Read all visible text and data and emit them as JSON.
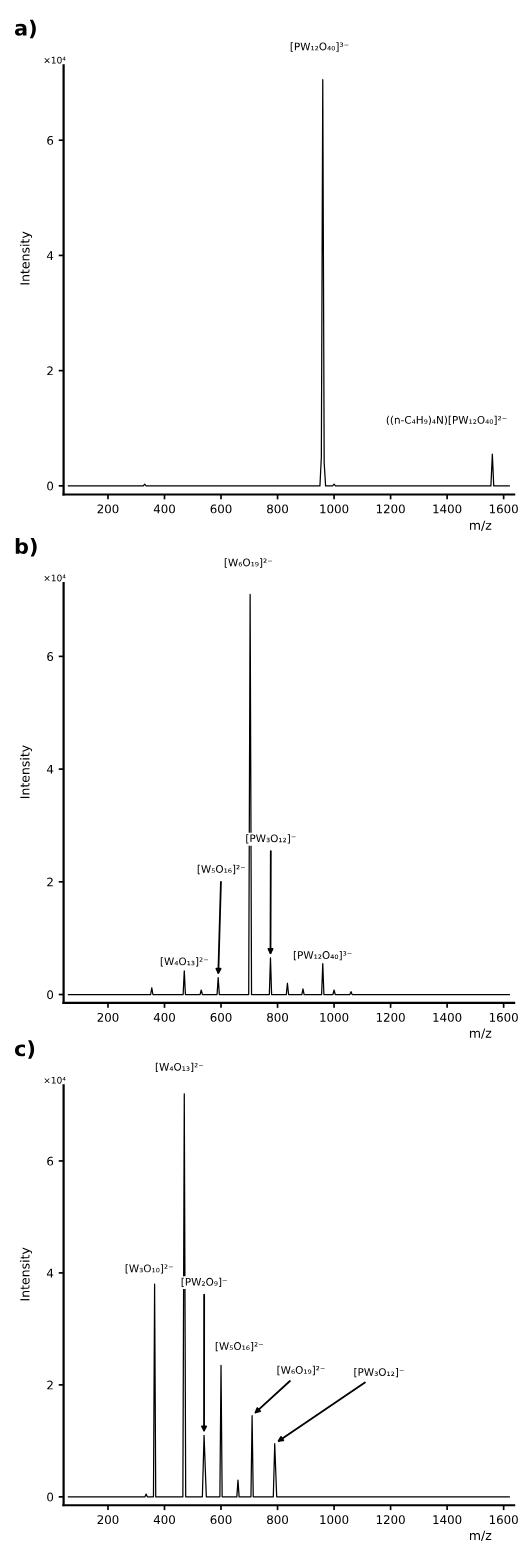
{
  "chart_data": [
    {
      "type": "line",
      "title": "a)",
      "xlabel": "m/z",
      "ylabel": "Intensity",
      "xlim": [
        43,
        1637
      ],
      "xticks": [
        200,
        400,
        600,
        800,
        1000,
        1200,
        1400,
        1600
      ],
      "ylim": [
        -0.15,
        7.3
      ],
      "yticks": [
        0,
        2,
        4,
        6
      ],
      "grid": false,
      "legend": false,
      "marker": "none",
      "line_style": "solid",
      "series": [
        {
          "color": "#000000",
          "x": [
            60,
            325,
            330,
            335,
            950,
            955,
            960,
            965,
            970,
            995,
            1000,
            1005,
            1555,
            1560,
            1565,
            1620
          ],
          "values": [
            0,
            0,
            0.03,
            0,
            0,
            0.5,
            7.05,
            0.4,
            0,
            0,
            0.03,
            0,
            0,
            0.55,
            0,
            0
          ]
        }
      ],
      "annotations": [
        "×10⁴",
        {
          "text": "[PW₁₂O₄₀]³⁻",
          "x": 960,
          "y": 7.05
        },
        {
          "text": "((n-C₄H₉)₄N)[PW₁₂O₄₀]²⁻",
          "x": 1560,
          "y": 0.55
        }
      ]
    },
    {
      "type": "line",
      "title": "b)",
      "xlabel": "m/z",
      "ylabel": "Intensity",
      "xlim": [
        43,
        1637
      ],
      "xticks": [
        200,
        400,
        600,
        800,
        1000,
        1200,
        1400,
        1600
      ],
      "ylim": [
        -0.15,
        7.3
      ],
      "yticks": [
        0,
        2,
        4,
        6
      ],
      "grid": false,
      "legend": false,
      "marker": "none",
      "line_style": "solid",
      "series": [
        {
          "color": "#000000",
          "x": [
            60,
            351,
            355,
            359,
            466,
            470,
            474,
            526,
            530,
            534,
            586,
            590,
            594,
            698,
            703,
            708,
            771,
            775,
            779,
            831,
            835,
            839,
            886,
            890,
            894,
            956,
            960,
            964,
            996,
            1000,
            1004,
            1056,
            1060,
            1064,
            1620
          ],
          "values": [
            0,
            0,
            0.12,
            0,
            0,
            0.42,
            0,
            0,
            0.08,
            0,
            0,
            0.3,
            0,
            0,
            7.1,
            0,
            0,
            0.65,
            0,
            0,
            0.2,
            0,
            0,
            0.1,
            0,
            0,
            0.55,
            0,
            0,
            0.08,
            0,
            0,
            0.05,
            0,
            0
          ]
        }
      ],
      "annotations": [
        "×10⁴",
        {
          "text": "[W₆O₁₉]²⁻",
          "x": 703,
          "y": 7.1
        },
        {
          "text": "[W₅O₁₆]²⁻",
          "x": 590,
          "y": 0.3
        },
        {
          "text": "[W₄O₁₃]²⁻",
          "x": 470,
          "y": 0.42
        },
        {
          "text": "[PW₃O₁₂]⁻",
          "x": 775,
          "y": 0.65
        },
        {
          "text": "[PW₁₂O₄₀]³⁻",
          "x": 960,
          "y": 0.55
        }
      ]
    },
    {
      "type": "line",
      "title": "c)",
      "xlabel": "m/z",
      "ylabel": "Intensity",
      "xlim": [
        43,
        1637
      ],
      "xticks": [
        200,
        400,
        600,
        800,
        1000,
        1200,
        1400,
        1600
      ],
      "ylim": [
        -0.15,
        7.35
      ],
      "yticks": [
        0,
        2,
        4,
        6
      ],
      "grid": false,
      "legend": false,
      "marker": "none",
      "line_style": "solid",
      "series": [
        {
          "color": "#000000",
          "x": [
            60,
            331,
            335,
            339,
            361,
            365,
            369,
            465,
            470,
            475,
            534,
            540,
            548,
            596,
            600,
            604,
            656,
            660,
            664,
            706,
            710,
            714,
            785,
            790,
            797,
            1620
          ],
          "values": [
            0,
            0,
            0.05,
            0,
            0,
            3.8,
            0,
            0,
            7.2,
            0,
            0,
            1.1,
            0,
            0,
            2.35,
            0,
            0,
            0.3,
            0,
            0,
            1.45,
            0,
            0,
            0.95,
            0,
            0
          ]
        }
      ],
      "annotations": [
        "×10⁴",
        {
          "text": "[W₄O₁₃]²⁻",
          "x": 470,
          "y": 7.2
        },
        {
          "text": "[W₃O₁₀]²⁻",
          "x": 365,
          "y": 3.8
        },
        {
          "text": "[PW₂O₉]⁻",
          "x": 540,
          "y": 1.1
        },
        {
          "text": "[W₅O₁₆]²⁻",
          "x": 600,
          "y": 2.35
        },
        {
          "text": "[W₆O₁₉]²⁻",
          "x": 710,
          "y": 1.45
        },
        {
          "text": "[PW₃O₁₂]⁻",
          "x": 790,
          "y": 0.95
        }
      ]
    }
  ]
}
